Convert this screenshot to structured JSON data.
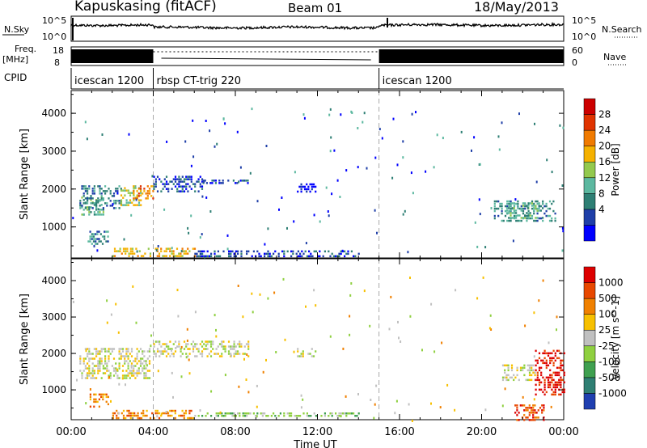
{
  "header": {
    "station": "Kapuskasing (fitACF)",
    "beam": "Beam 01",
    "date": "18/May/2013"
  },
  "left_labels": {
    "nsky": "N.Sky",
    "freq_line1": "Freq.",
    "freq_line2": "[MHz]",
    "cpid": "CPID"
  },
  "right_labels": {
    "nsearch": "N.Search",
    "nave": "Nave"
  },
  "noise_axis": {
    "ticks_left": [
      "10^5",
      "10^0"
    ],
    "ticks_right": [
      "10^5",
      "10^0"
    ]
  },
  "freq_axis": {
    "ticks_left": [
      "18",
      "8"
    ],
    "ticks_right": [
      "60",
      "0"
    ]
  },
  "cpid_segments": [
    {
      "label": "icescan 1200",
      "start": 0,
      "end": 4
    },
    {
      "label": "rbsp CT-trig 220",
      "start": 4,
      "end": 15
    },
    {
      "label": "icescan 1200",
      "start": 15,
      "end": 24
    }
  ],
  "chart_data": [
    {
      "type": "heatmap",
      "name": "power",
      "ylabel": "Slant Range [km]",
      "colorbar_label": "Power [dB]",
      "colorbar_ticks": [
        "28",
        "24",
        "20",
        "16",
        "12",
        "8",
        "4"
      ],
      "colors": [
        "#0000ff",
        "#1f3fa8",
        "#2e7f74",
        "#5cb8a0",
        "#93c94e",
        "#f5b100",
        "#f07a00",
        "#e03300",
        "#cc0000"
      ],
      "ylim": [
        180,
        4600
      ],
      "y_ticks": [
        "4000",
        "3000",
        "2000",
        "1000"
      ],
      "x_ticks": [
        "00:00",
        "04:00",
        "08:00",
        "12:00",
        "16:00",
        "20:00",
        "00:00"
      ],
      "xlim_hours": [
        0,
        24
      ],
      "echo_regions": [
        {
          "t0": 0.4,
          "t1": 1.6,
          "r0": 1350,
          "r1": 1800,
          "level": 3
        },
        {
          "t0": 0.4,
          "t1": 2.4,
          "r0": 1500,
          "r1": 2100,
          "level": 2
        },
        {
          "t0": 2.4,
          "t1": 3.4,
          "r0": 1600,
          "r1": 2050,
          "level": 4
        },
        {
          "t0": 3.0,
          "t1": 4.0,
          "r0": 1750,
          "r1": 2100,
          "level": 6
        },
        {
          "t0": 4.0,
          "t1": 6.4,
          "r0": 1950,
          "r1": 2350,
          "level": 1
        },
        {
          "t0": 6.4,
          "t1": 8.6,
          "r0": 2150,
          "r1": 2250,
          "level": 1
        },
        {
          "t0": 2.0,
          "t1": 6.0,
          "r0": 250,
          "r1": 450,
          "level": 5
        },
        {
          "t0": 6.0,
          "t1": 14.0,
          "r0": 250,
          "r1": 380,
          "level": 1
        },
        {
          "t0": 20.6,
          "t1": 23.6,
          "r0": 1150,
          "r1": 1700,
          "level": 2
        },
        {
          "t0": 21.2,
          "t1": 23.0,
          "r0": 1250,
          "r1": 1650,
          "level": 3
        },
        {
          "t0": 0.8,
          "t1": 1.8,
          "r0": 550,
          "r1": 900,
          "level": 2
        },
        {
          "t0": 11.0,
          "t1": 11.9,
          "r0": 1950,
          "r1": 2150,
          "level": 0
        }
      ],
      "scatter_density": 0.15
    },
    {
      "type": "heatmap",
      "name": "velocity",
      "ylabel": "Slant Range [km]",
      "colorbar_label": "Velocity [m s^-1]",
      "colorbar_ticks": [
        "1000",
        "500",
        "100",
        "25",
        "-25",
        "-100",
        "-500",
        "-1000"
      ],
      "colors": [
        "#1f3fb0",
        "#2f7f73",
        "#3fa050",
        "#8fd040",
        "#c0c0c0",
        "#f7c000",
        "#f08000",
        "#e84800",
        "#dd0000"
      ],
      "ylim": [
        180,
        4600
      ],
      "y_ticks": [
        "4000",
        "3000",
        "2000",
        "1000"
      ],
      "x_ticks": [
        "00:00",
        "04:00",
        "08:00",
        "12:00",
        "16:00",
        "20:00",
        "00:00"
      ],
      "xlabel": "Time UT",
      "xlim_hours": [
        0,
        24
      ],
      "echo_regions": [
        {
          "t0": 0.4,
          "t1": 3.8,
          "r0": 1350,
          "r1": 2150,
          "level": 4
        },
        {
          "t0": 4.0,
          "t1": 8.6,
          "r0": 1950,
          "r1": 2350,
          "level": 4
        },
        {
          "t0": 0.9,
          "t1": 1.8,
          "r0": 550,
          "r1": 900,
          "level": 6
        },
        {
          "t0": 2.0,
          "t1": 6.0,
          "r0": 250,
          "r1": 450,
          "level": 6
        },
        {
          "t0": 6.0,
          "t1": 14.0,
          "r0": 250,
          "r1": 380,
          "level": 3
        },
        {
          "t0": 21.0,
          "t1": 22.6,
          "r0": 1300,
          "r1": 1700,
          "level": 4
        },
        {
          "t0": 22.6,
          "t1": 24.0,
          "r0": 900,
          "r1": 2100,
          "level": 8
        },
        {
          "t0": 21.6,
          "t1": 23.0,
          "r0": 200,
          "r1": 600,
          "level": 7
        },
        {
          "t0": 11.0,
          "t1": 11.9,
          "r0": 1950,
          "r1": 2150,
          "level": 4
        }
      ],
      "scatter_density": 0.15
    }
  ]
}
